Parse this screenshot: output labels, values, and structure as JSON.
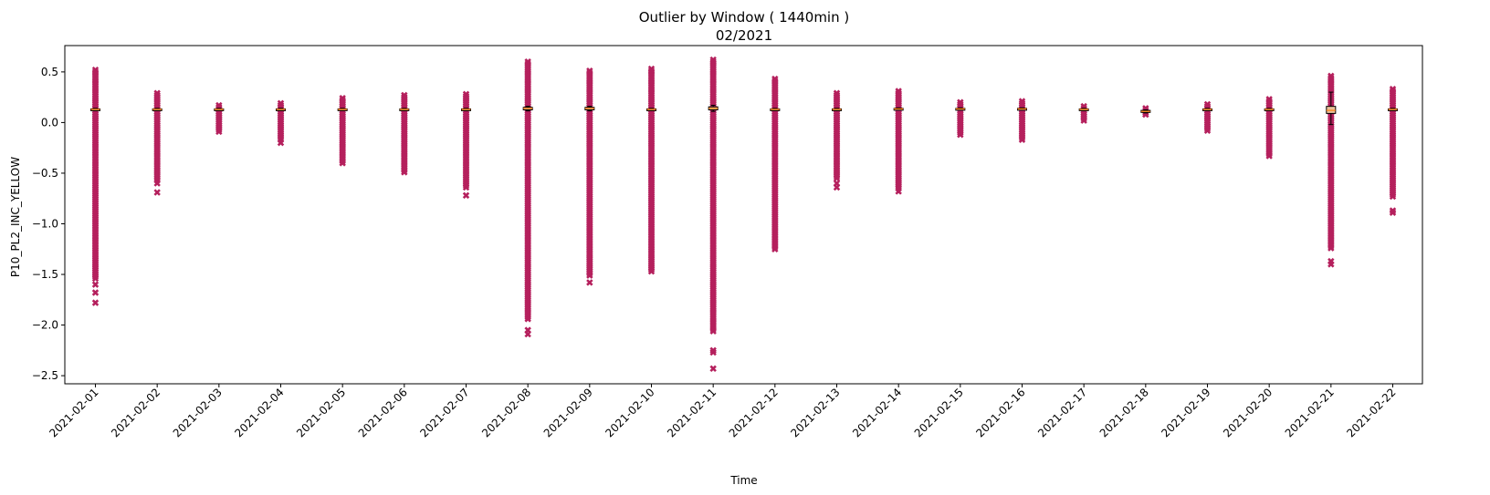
{
  "chart_data": {
    "type": "boxplot",
    "title": "Outlier by Window ( 1440min )",
    "subtitle": "02/2021",
    "xlabel": "Time",
    "ylabel": "P10_PL2_INC_YELLOW",
    "ylim": [
      -2.58,
      0.76
    ],
    "yticks": [
      0.5,
      0.0,
      -0.5,
      -1.0,
      -1.5,
      -2.0,
      -2.5
    ],
    "ytick_labels": [
      "0.5",
      "0.0",
      "−0.5",
      "−1.0",
      "−1.5",
      "−2.0",
      "−2.5"
    ],
    "categories": [
      "2021-02-01",
      "2021-02-02",
      "2021-02-03",
      "2021-02-04",
      "2021-02-05",
      "2021-02-06",
      "2021-02-07",
      "2021-02-08",
      "2021-02-09",
      "2021-02-10",
      "2021-02-11",
      "2021-02-12",
      "2021-02-13",
      "2021-02-14",
      "2021-02-15",
      "2021-02-16",
      "2021-02-17",
      "2021-02-18",
      "2021-02-19",
      "2021-02-20",
      "2021-02-21",
      "2021-02-22"
    ],
    "boxes": [
      {
        "q1": 0.125,
        "median": 0.13,
        "q3": 0.135,
        "wlo": 0.12,
        "whi": 0.14
      },
      {
        "q1": 0.125,
        "median": 0.13,
        "q3": 0.135,
        "wlo": 0.12,
        "whi": 0.14
      },
      {
        "q1": 0.125,
        "median": 0.13,
        "q3": 0.135,
        "wlo": 0.12,
        "whi": 0.14
      },
      {
        "q1": 0.125,
        "median": 0.13,
        "q3": 0.135,
        "wlo": 0.12,
        "whi": 0.14
      },
      {
        "q1": 0.125,
        "median": 0.13,
        "q3": 0.135,
        "wlo": 0.12,
        "whi": 0.14
      },
      {
        "q1": 0.125,
        "median": 0.13,
        "q3": 0.135,
        "wlo": 0.12,
        "whi": 0.14
      },
      {
        "q1": 0.125,
        "median": 0.13,
        "q3": 0.135,
        "wlo": 0.12,
        "whi": 0.14
      },
      {
        "q1": 0.125,
        "median": 0.14,
        "q3": 0.15,
        "wlo": 0.115,
        "whi": 0.16
      },
      {
        "q1": 0.125,
        "median": 0.14,
        "q3": 0.15,
        "wlo": 0.115,
        "whi": 0.16
      },
      {
        "q1": 0.125,
        "median": 0.13,
        "q3": 0.135,
        "wlo": 0.12,
        "whi": 0.14
      },
      {
        "q1": 0.125,
        "median": 0.14,
        "q3": 0.155,
        "wlo": 0.11,
        "whi": 0.17
      },
      {
        "q1": 0.125,
        "median": 0.13,
        "q3": 0.135,
        "wlo": 0.12,
        "whi": 0.14
      },
      {
        "q1": 0.125,
        "median": 0.13,
        "q3": 0.135,
        "wlo": 0.12,
        "whi": 0.14
      },
      {
        "q1": 0.13,
        "median": 0.135,
        "q3": 0.14,
        "wlo": 0.125,
        "whi": 0.145
      },
      {
        "q1": 0.13,
        "median": 0.135,
        "q3": 0.14,
        "wlo": 0.125,
        "whi": 0.145
      },
      {
        "q1": 0.13,
        "median": 0.135,
        "q3": 0.14,
        "wlo": 0.125,
        "whi": 0.145
      },
      {
        "q1": 0.125,
        "median": 0.13,
        "q3": 0.135,
        "wlo": 0.12,
        "whi": 0.14
      },
      {
        "q1": 0.1,
        "median": 0.11,
        "q3": 0.12,
        "wlo": 0.095,
        "whi": 0.125
      },
      {
        "q1": 0.125,
        "median": 0.13,
        "q3": 0.135,
        "wlo": 0.12,
        "whi": 0.14
      },
      {
        "q1": 0.125,
        "median": 0.13,
        "q3": 0.135,
        "wlo": 0.12,
        "whi": 0.14
      },
      {
        "q1": 0.09,
        "median": 0.12,
        "q3": 0.16,
        "wlo": -0.02,
        "whi": 0.3
      },
      {
        "q1": 0.125,
        "median": 0.13,
        "q3": 0.135,
        "wlo": 0.12,
        "whi": 0.14
      }
    ],
    "outlier_ranges": [
      [
        -1.55,
        0.52
      ],
      [
        -0.58,
        0.29
      ],
      [
        -0.1,
        0.17
      ],
      [
        -0.17,
        0.19
      ],
      [
        -0.42,
        0.24
      ],
      [
        -0.51,
        0.27
      ],
      [
        -0.66,
        0.28
      ],
      [
        -1.95,
        0.6
      ],
      [
        -1.52,
        0.51
      ],
      [
        -1.48,
        0.53
      ],
      [
        -2.07,
        0.62
      ],
      [
        -1.27,
        0.43
      ],
      [
        -0.57,
        0.29
      ],
      [
        -0.66,
        0.31
      ],
      [
        -0.12,
        0.2
      ],
      [
        -0.17,
        0.21
      ],
      [
        0.0,
        0.16
      ],
      [
        0.08,
        0.14
      ],
      [
        -0.09,
        0.18
      ],
      [
        -0.33,
        0.23
      ],
      [
        -1.25,
        0.46
      ],
      [
        -0.75,
        0.33
      ]
    ],
    "outlier_extra": [
      [
        -1.78,
        -1.68,
        -1.6
      ],
      [
        -0.69,
        -0.6
      ],
      [],
      [
        -0.2
      ],
      [],
      [],
      [
        -0.72
      ],
      [
        -2.09,
        -2.05
      ],
      [
        -1.58
      ],
      [],
      [
        -2.43,
        -2.27,
        -2.25
      ],
      [],
      [
        -0.64,
        -0.6
      ],
      [
        -0.68
      ],
      [],
      [],
      [],
      [
        0.08
      ],
      [],
      [],
      [
        -1.4,
        -1.37
      ],
      [
        -0.87,
        -0.89
      ]
    ],
    "colors": {
      "outlier": "#b5205d",
      "box_fill": "#e8c09a",
      "box_edge": "#000000",
      "median": "#ff7f0e"
    },
    "grid": false,
    "legend": "none"
  }
}
